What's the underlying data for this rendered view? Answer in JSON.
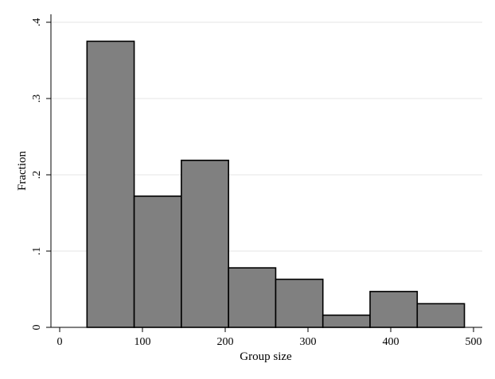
{
  "chart_data": {
    "type": "bar",
    "title": "",
    "xlabel": "Group size",
    "ylabel": "Fraction",
    "xlim": [
      0,
      500
    ],
    "ylim": [
      0,
      0.4
    ],
    "x_ticks": [
      0,
      100,
      200,
      300,
      400,
      500
    ],
    "x_tick_labels": [
      "0",
      "100",
      "200",
      "300",
      "400",
      "500"
    ],
    "y_ticks": [
      0,
      0.1,
      0.2,
      0.3,
      0.4
    ],
    "y_tick_labels": [
      "0",
      ".1",
      ".2",
      ".3",
      ".4"
    ],
    "grid": "horizontal",
    "bar_color": "#808080",
    "bins": [
      {
        "start": 33,
        "end": 90,
        "value": 0.375
      },
      {
        "start": 90,
        "end": 147,
        "value": 0.172
      },
      {
        "start": 147,
        "end": 204,
        "value": 0.219
      },
      {
        "start": 204,
        "end": 261,
        "value": 0.078
      },
      {
        "start": 261,
        "end": 318,
        "value": 0.063
      },
      {
        "start": 318,
        "end": 375,
        "value": 0.016
      },
      {
        "start": 375,
        "end": 432,
        "value": 0.047
      },
      {
        "start": 432,
        "end": 489,
        "value": 0.031
      }
    ]
  }
}
